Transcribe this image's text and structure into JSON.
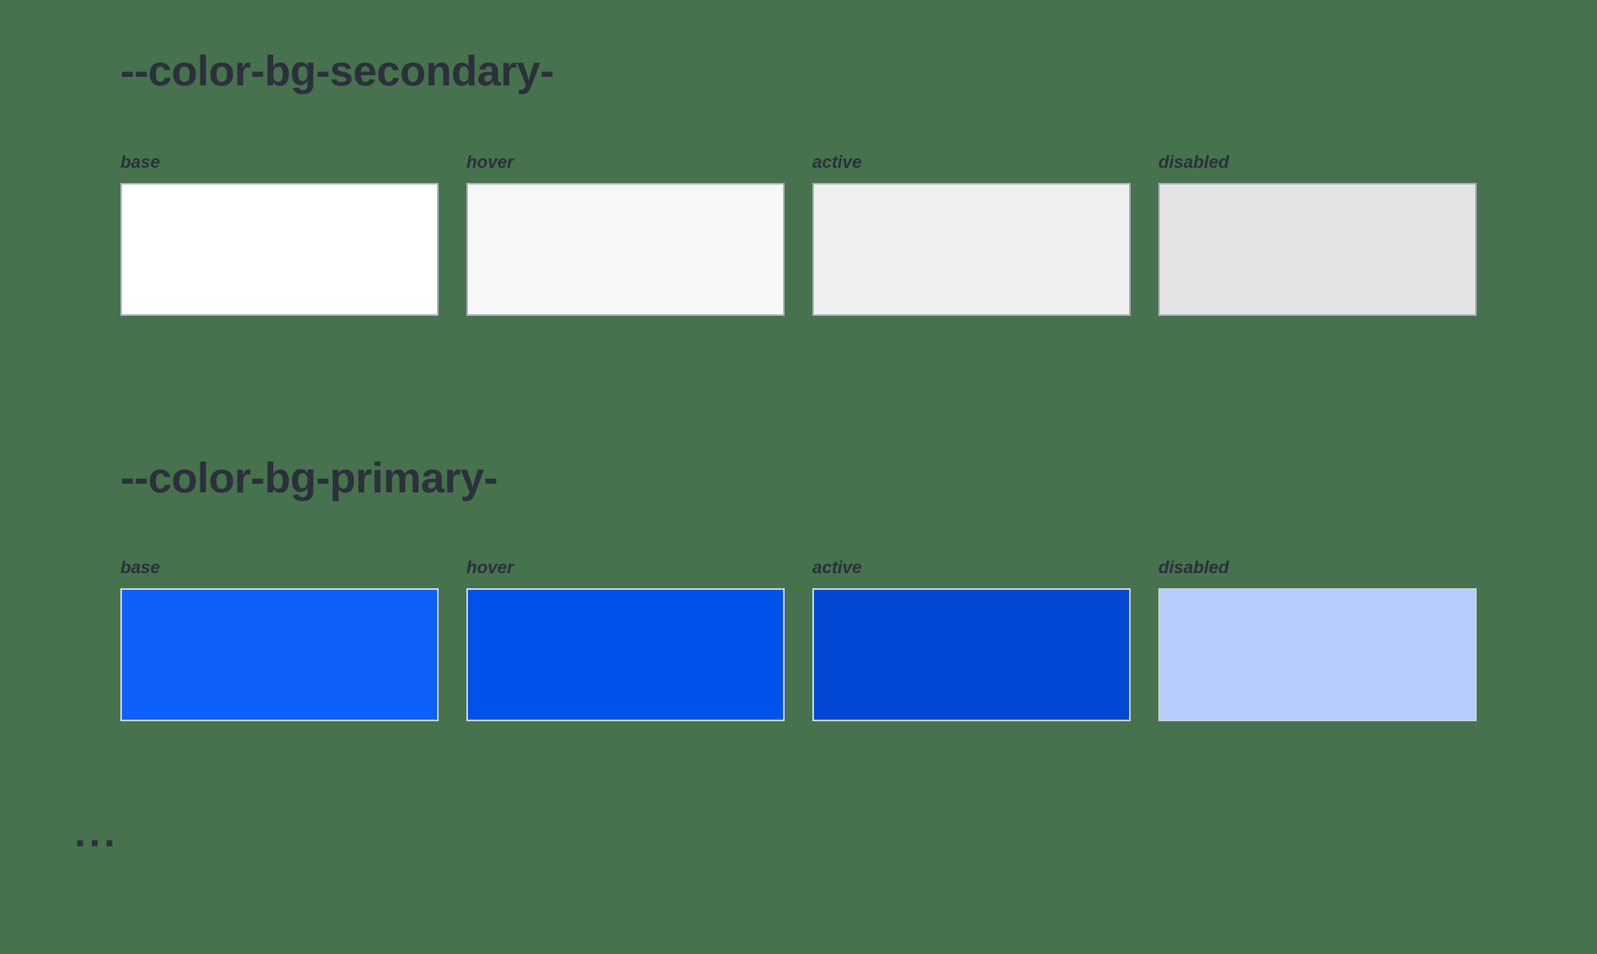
{
  "page": {
    "background_color": "#47724E",
    "text_color": "#2B303B",
    "ellipsis": "..."
  },
  "sections": [
    {
      "title": "--color-bg-secondary-",
      "swatches": [
        {
          "label": "base",
          "color": "#FFFFFF",
          "border": "#A8B0BC"
        },
        {
          "label": "hover",
          "color": "#F7F7F8",
          "border": "#A8B0BC"
        },
        {
          "label": "active",
          "color": "#F0F0F1",
          "border": "#A8B0BC"
        },
        {
          "label": "disabled",
          "color": "#E4E4E6",
          "border": "#A8B0BC"
        }
      ]
    },
    {
      "title": "--color-bg-primary-",
      "swatches": [
        {
          "label": "base",
          "color": "#0D60FC",
          "border": "#D5D8DB"
        },
        {
          "label": "hover",
          "color": "#0052EC",
          "border": "#D5D8DB"
        },
        {
          "label": "active",
          "color": "#0348D4",
          "border": "#D5D8DB"
        },
        {
          "label": "disabled",
          "color": "#B6CCFA",
          "border": "#CBD2DA"
        }
      ]
    }
  ]
}
